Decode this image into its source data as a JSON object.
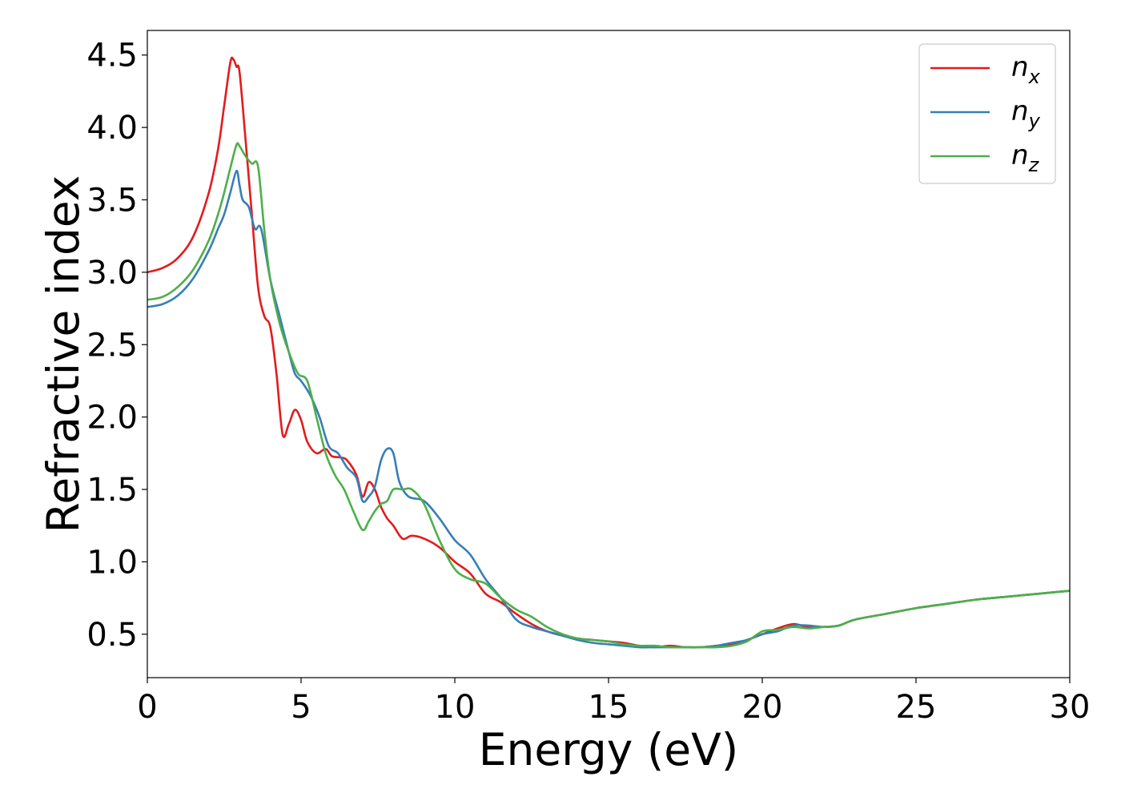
{
  "chart_data": {
    "type": "line",
    "xlabel": "Energy (eV)",
    "ylabel": "Refractive index",
    "xlim": [
      0,
      30
    ],
    "ylim": [
      0.2,
      4.67
    ],
    "x_ticks": [
      0,
      5,
      10,
      15,
      20,
      25,
      30
    ],
    "y_ticks": [
      0.5,
      1.0,
      1.5,
      2.0,
      2.5,
      3.0,
      3.5,
      4.0,
      4.5
    ],
    "x_tick_labels": [
      "0",
      "5",
      "10",
      "15",
      "20",
      "25",
      "30"
    ],
    "y_tick_labels": [
      "0.5",
      "1.0",
      "1.5",
      "2.0",
      "2.5",
      "3.0",
      "3.5",
      "4.0",
      "4.5"
    ],
    "grid": false,
    "legend_position": "top-right",
    "series": [
      {
        "name": "n",
        "subscript": "x",
        "color": "#e41a1c",
        "x": [
          0,
          0.5,
          1.0,
          1.5,
          2.0,
          2.3,
          2.5,
          2.7,
          2.8,
          2.9,
          3.0,
          3.2,
          3.4,
          3.6,
          3.8,
          4.0,
          4.2,
          4.4,
          4.6,
          4.8,
          5.0,
          5.2,
          5.5,
          5.8,
          6.0,
          6.3,
          6.5,
          6.8,
          7.0,
          7.2,
          7.4,
          7.6,
          7.8,
          8.0,
          8.3,
          8.6,
          9.0,
          9.5,
          10.0,
          10.5,
          11.0,
          11.5,
          12.0,
          12.5,
          13.0,
          13.5,
          14.0,
          14.5,
          15.0,
          15.5,
          16.0,
          16.5,
          17.0,
          17.5,
          18.0,
          18.5,
          19.0,
          19.5,
          20.0,
          20.5,
          21.0,
          21.5,
          22.0,
          22.5,
          23.0,
          24.0,
          25.0,
          26.0,
          27.0,
          28.0,
          29.0,
          30.0
        ],
        "y": [
          3.0,
          3.03,
          3.1,
          3.25,
          3.55,
          3.85,
          4.15,
          4.45,
          4.47,
          4.42,
          4.38,
          3.9,
          3.4,
          2.9,
          2.7,
          2.62,
          2.3,
          1.88,
          1.95,
          2.05,
          1.98,
          1.83,
          1.75,
          1.78,
          1.73,
          1.72,
          1.7,
          1.6,
          1.45,
          1.55,
          1.5,
          1.38,
          1.3,
          1.25,
          1.16,
          1.18,
          1.16,
          1.1,
          1.0,
          0.92,
          0.78,
          0.72,
          0.64,
          0.57,
          0.52,
          0.49,
          0.47,
          0.46,
          0.45,
          0.44,
          0.42,
          0.41,
          0.42,
          0.41,
          0.41,
          0.42,
          0.43,
          0.46,
          0.5,
          0.54,
          0.57,
          0.55,
          0.55,
          0.56,
          0.6,
          0.64,
          0.68,
          0.71,
          0.74,
          0.76,
          0.78,
          0.8
        ]
      },
      {
        "name": "n",
        "subscript": "y",
        "color": "#377eb8",
        "x": [
          0,
          0.5,
          1.0,
          1.5,
          2.0,
          2.3,
          2.5,
          2.7,
          2.9,
          3.0,
          3.1,
          3.3,
          3.5,
          3.7,
          4.0,
          4.3,
          4.6,
          4.8,
          5.0,
          5.3,
          5.6,
          5.9,
          6.2,
          6.5,
          6.8,
          7.0,
          7.2,
          7.4,
          7.6,
          7.8,
          8.0,
          8.2,
          8.5,
          9.0,
          9.5,
          10.0,
          10.5,
          11.0,
          11.5,
          12.0,
          12.5,
          13.0,
          13.5,
          14.0,
          14.5,
          15.0,
          15.5,
          16.0,
          16.5,
          17.0,
          17.5,
          18.0,
          18.5,
          19.0,
          19.5,
          20.0,
          20.5,
          21.0,
          21.5,
          22.0,
          22.5,
          23.0,
          24.0,
          25.0,
          26.0,
          27.0,
          28.0,
          29.0,
          30.0
        ],
        "y": [
          2.76,
          2.78,
          2.84,
          2.96,
          3.15,
          3.3,
          3.4,
          3.55,
          3.7,
          3.6,
          3.5,
          3.45,
          3.3,
          3.3,
          2.95,
          2.7,
          2.45,
          2.3,
          2.25,
          2.15,
          2.0,
          1.8,
          1.75,
          1.65,
          1.58,
          1.42,
          1.45,
          1.52,
          1.7,
          1.78,
          1.75,
          1.55,
          1.45,
          1.42,
          1.3,
          1.15,
          1.05,
          0.88,
          0.75,
          0.6,
          0.55,
          0.52,
          0.49,
          0.46,
          0.44,
          0.43,
          0.42,
          0.41,
          0.41,
          0.41,
          0.41,
          0.41,
          0.42,
          0.44,
          0.46,
          0.5,
          0.52,
          0.56,
          0.56,
          0.55,
          0.56,
          0.6,
          0.64,
          0.68,
          0.71,
          0.74,
          0.76,
          0.78,
          0.8
        ]
      },
      {
        "name": "n",
        "subscript": "z",
        "color": "#4daf4a",
        "x": [
          0,
          0.5,
          1.0,
          1.5,
          2.0,
          2.3,
          2.5,
          2.7,
          2.9,
          3.0,
          3.2,
          3.4,
          3.6,
          3.8,
          4.0,
          4.3,
          4.6,
          4.9,
          5.2,
          5.5,
          5.8,
          6.1,
          6.4,
          6.7,
          7.0,
          7.2,
          7.4,
          7.6,
          7.8,
          8.0,
          8.3,
          8.6,
          9.0,
          9.5,
          10.0,
          10.5,
          11.0,
          11.5,
          12.0,
          12.5,
          13.0,
          13.5,
          14.0,
          14.5,
          15.0,
          15.5,
          16.0,
          16.5,
          17.0,
          17.5,
          18.0,
          18.5,
          19.0,
          19.5,
          20.0,
          20.5,
          21.0,
          21.5,
          22.0,
          22.5,
          23.0,
          24.0,
          25.0,
          26.0,
          27.0,
          28.0,
          29.0,
          30.0
        ],
        "y": [
          2.81,
          2.83,
          2.9,
          3.02,
          3.22,
          3.4,
          3.55,
          3.72,
          3.88,
          3.87,
          3.8,
          3.75,
          3.73,
          3.3,
          2.95,
          2.65,
          2.45,
          2.3,
          2.25,
          2.0,
          1.75,
          1.6,
          1.5,
          1.35,
          1.22,
          1.28,
          1.35,
          1.4,
          1.42,
          1.5,
          1.5,
          1.5,
          1.4,
          1.15,
          0.95,
          0.88,
          0.85,
          0.75,
          0.67,
          0.62,
          0.55,
          0.5,
          0.47,
          0.46,
          0.45,
          0.43,
          0.42,
          0.42,
          0.41,
          0.41,
          0.41,
          0.41,
          0.42,
          0.45,
          0.52,
          0.53,
          0.55,
          0.54,
          0.55,
          0.56,
          0.6,
          0.64,
          0.68,
          0.71,
          0.74,
          0.76,
          0.78,
          0.8
        ]
      }
    ]
  }
}
